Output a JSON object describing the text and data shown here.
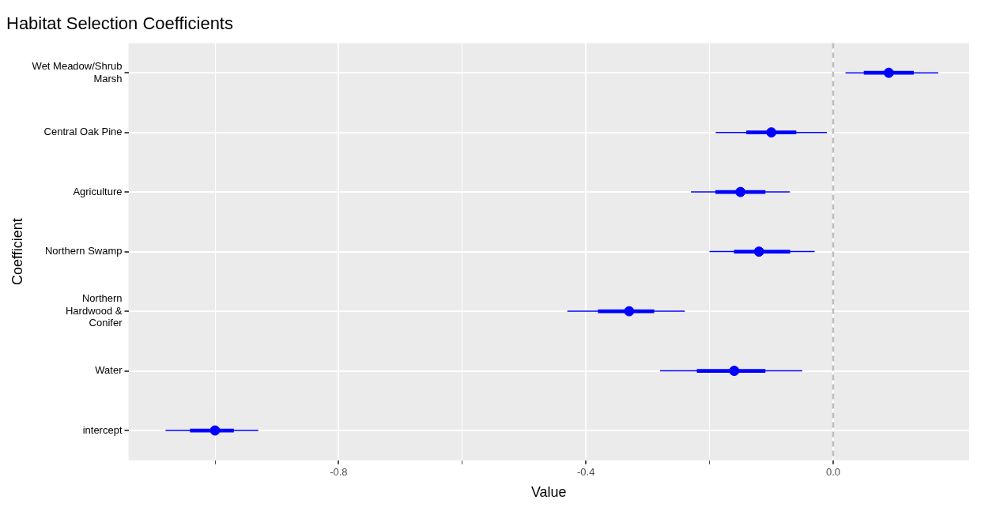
{
  "chart_data": {
    "type": "scatter",
    "orientation": "horizontal",
    "title": "Habitat Selection Coefficients",
    "xlabel": "Value",
    "ylabel": "Coefficient",
    "categories": [
      "Wet Meadow/Shrub Marsh",
      "Central Oak Pine",
      "Agriculture",
      "Northern Swamp",
      "Northern Hardwood & Conifer",
      "Water",
      "intercept"
    ],
    "series": [
      {
        "type": "bar",
        "color": "#0000ff",
        "base": [
          0.05,
          -0.14,
          -0.19,
          -0.16,
          -0.38,
          -0.22,
          -1.04
        ],
        "values": [
          0.08,
          0.08,
          0.08,
          0.09,
          0.09,
          0.11,
          0.07
        ]
      },
      {
        "type": "scatter",
        "color": "#0000ff",
        "values": [
          0.09,
          -0.1,
          -0.15,
          -0.12,
          -0.33,
          -0.16,
          -1.0
        ],
        "errors": [
          [
            0.02,
            0.17
          ],
          [
            -0.19,
            -0.01
          ],
          [
            -0.23,
            -0.07
          ],
          [
            -0.2,
            -0.03
          ],
          [
            -0.43,
            -0.24
          ],
          [
            -0.28,
            -0.05
          ],
          [
            -1.08,
            -0.93
          ]
        ]
      }
    ],
    "marker": "circle",
    "xlim": [
      -1.14,
      0.22
    ],
    "xticks": [
      {
        "value": -1.0,
        "label": null
      },
      -0.8,
      {
        "value": -0.6,
        "label": null
      },
      -0.4,
      {
        "value": -0.2,
        "label": null
      },
      {
        "value": 0,
        "label": "0.0"
      }
    ],
    "ref_lines": [
      {
        "axis": "x",
        "value": 0,
        "color": "#bebebe",
        "line_style": "dashed"
      }
    ],
    "grid": true,
    "legend": false
  }
}
